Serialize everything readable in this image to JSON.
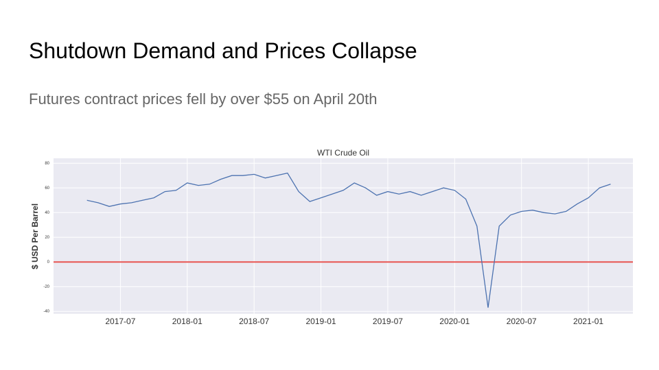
{
  "header": {
    "title": "Shutdown Demand and Prices Collapse",
    "subtitle": "Futures contract prices fell by over $55 on April 20th"
  },
  "chart_data": {
    "type": "line",
    "title": "WTI Crude Oil",
    "y_label": "$ USD Per Barrel",
    "x": [
      "2017-04",
      "2017-05",
      "2017-06",
      "2017-07",
      "2017-08",
      "2017-09",
      "2017-10",
      "2017-11",
      "2017-12",
      "2018-01",
      "2018-02",
      "2018-03",
      "2018-04",
      "2018-05",
      "2018-06",
      "2018-07",
      "2018-08",
      "2018-09",
      "2018-10",
      "2018-11",
      "2018-12",
      "2019-01",
      "2019-02",
      "2019-03",
      "2019-04",
      "2019-05",
      "2019-06",
      "2019-07",
      "2019-08",
      "2019-09",
      "2019-10",
      "2019-11",
      "2019-12",
      "2020-01",
      "2020-02",
      "2020-03",
      "2020-04",
      "2020-05",
      "2020-06",
      "2020-07",
      "2020-08",
      "2020-09",
      "2020-10",
      "2020-11",
      "2020-12",
      "2021-01",
      "2021-02",
      "2021-03"
    ],
    "series": [
      {
        "name": "WTI Crude Oil",
        "color": "#4c72b0",
        "values": [
          50,
          48,
          45,
          47,
          48,
          50,
          52,
          57,
          58,
          64,
          62,
          63,
          67,
          70,
          70,
          71,
          68,
          70,
          72,
          57,
          49,
          52,
          55,
          58,
          64,
          60,
          54,
          57,
          55,
          57,
          54,
          57,
          60,
          58,
          51,
          29,
          -37,
          29,
          38,
          41,
          42,
          40,
          39,
          41,
          47,
          52,
          60,
          63
        ]
      }
    ],
    "xlim": [
      "2017-01",
      "2021-05"
    ],
    "xticks": [
      "2017-07",
      "2018-01",
      "2018-07",
      "2019-01",
      "2019-07",
      "2020-01",
      "2020-07",
      "2021-01"
    ],
    "ylim": [
      -42,
      84
    ],
    "yticks": [
      -40,
      -20,
      0,
      20,
      40,
      60,
      80
    ],
    "hline": {
      "value": 0,
      "color": "#e8524f"
    },
    "grid": true
  }
}
